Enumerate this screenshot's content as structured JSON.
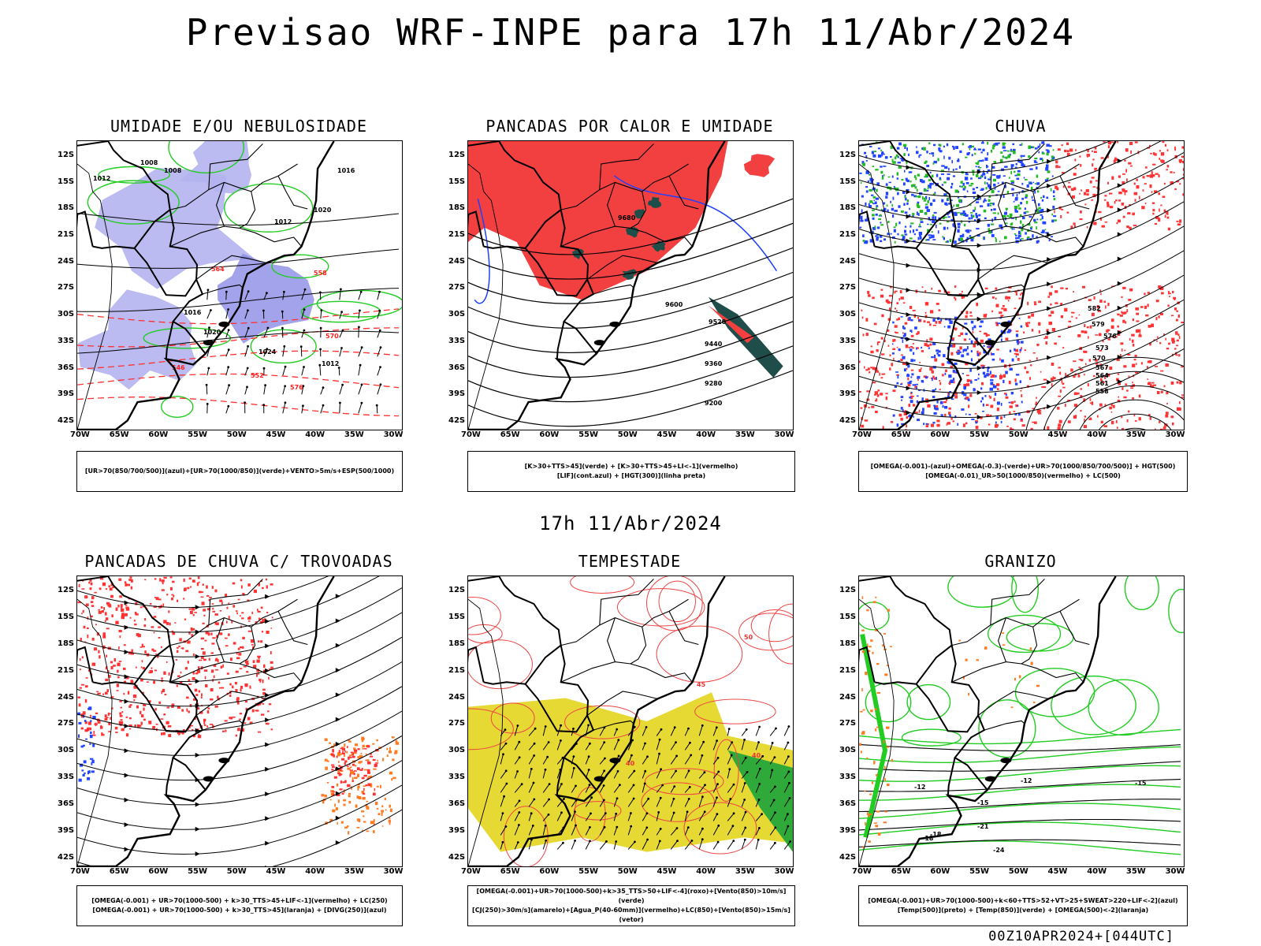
{
  "main_title": "Previsao WRF-INPE  para 17h 11/Abr/2024",
  "mid_title": "17h 11/Abr/2024",
  "footer_stamp": "00Z10APR2024+[044UTC]",
  "axes": {
    "lat_ticks": [
      "12S",
      "15S",
      "18S",
      "21S",
      "24S",
      "27S",
      "30S",
      "33S",
      "36S",
      "39S",
      "42S"
    ],
    "lon_ticks": [
      "70W",
      "65W",
      "60W",
      "55W",
      "50W",
      "45W",
      "40W",
      "35W",
      "30W"
    ]
  },
  "panels": [
    {
      "title": "UMIDADE E/OU NEBULOSIDADE",
      "legend": [
        "[UR>70(850/700/500)](azul)+[UR>70(1000/850)](verde)+VENTO>5m/s+ESP(500/1000)"
      ],
      "layers": [
        "purple-humidity",
        "green-contours",
        "black-isobars",
        "red-dashed-thickness",
        "wind-vectors"
      ],
      "contour_labels": [
        "1008",
        "1008",
        "1012",
        "1016",
        "1020",
        "1012",
        "1016",
        "1020",
        "1024",
        "1012",
        "576",
        "570",
        "564",
        "558",
        "552",
        "546"
      ]
    },
    {
      "title": "PANCADAS POR CALOR E UMIDADE",
      "legend": [
        "[K>30+TTS>45](verde) + [K>30+TTS>45+LI<-1](vermelho)",
        "[LIF](cont.azul) + [HGT(300)](linha preta)"
      ],
      "layers": [
        "red-fill",
        "dark-green-fill",
        "blue-contour",
        "black-height"
      ],
      "contour_labels": [
        "9680",
        "9600",
        "9520",
        "9440",
        "9360",
        "9280",
        "9200"
      ]
    },
    {
      "title": "CHUVA",
      "legend": [
        "[OMEGA(-0.001)-(azul)+OMEGA(-0.3)-(verde)+UR>70(1000/850/700/500)] + HGT(500)",
        "[OMEGA(-0.01)_UR>50(1000/850)(vermelho) + LC(500)"
      ],
      "layers": [
        "red-speckle",
        "blue-speckle",
        "green-speckle",
        "black-streamlines"
      ],
      "contour_labels": [
        "582",
        "579",
        "576",
        "573",
        "570",
        "567",
        "564",
        "561",
        "558"
      ]
    },
    {
      "title": "PANCADAS DE CHUVA C/ TROVOADAS",
      "legend": [
        "[OMEGA(-0.001) + UR>70(1000-500) + k>30_TTS>45+LIF<-1](vermelho) + LC(250)",
        "[OMEGA(-0.001) + UR>70(1000-500) + k>30_TTS>45](laranja) + [DIVG(250)](azul)"
      ],
      "layers": [
        "red-speckle",
        "orange-speckle",
        "blue-speckle",
        "black-streamlines"
      ],
      "contour_labels": []
    },
    {
      "title": "TEMPESTADE",
      "legend": [
        "[OMEGA(-0.001)+UR>70(1000-500)+k>35_TTS>50+LIF<-4](roxo)+[Vento(850)>10m/s](verde)",
        "[CJ(250)>30m/s](amarelo)+[Agua_P(40-60mm)](vermelho)+LC(850)+[Vento(850)>15m/s](vetor)"
      ],
      "layers": [
        "yellow-jet",
        "green-wind",
        "red-contours",
        "wind-vectors"
      ],
      "contour_labels": [
        "40",
        "45",
        "50",
        "40"
      ]
    },
    {
      "title": "GRANIZO",
      "legend": [
        "[OMEGA(-0.001)+UR>70(1000-500)+k<60+TTS>52+VT>25+SWEAT>220+LIF<-2](azul)",
        "[Temp(500)](preto) + [Temp(850)](verde) + [OMEGA(500)<-2](laranja)"
      ],
      "layers": [
        "green-contours",
        "black-temperature",
        "orange-speckle"
      ],
      "contour_labels": [
        "-12",
        "-12",
        "-15",
        "-15",
        "-18",
        "-21",
        "-24",
        "-18"
      ]
    }
  ]
}
